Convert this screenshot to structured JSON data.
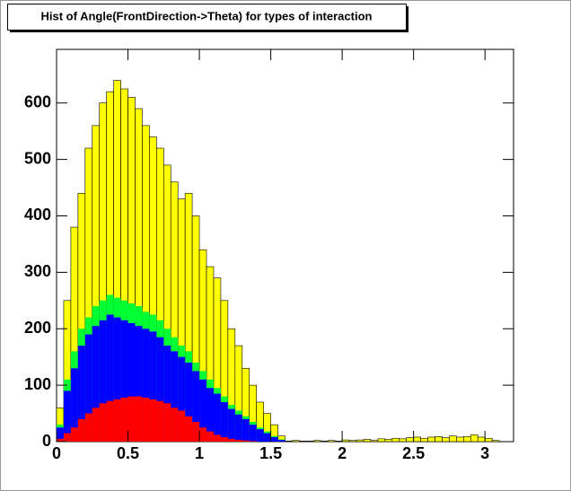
{
  "chart_data": {
    "type": "histogram",
    "title": "Hist of Angle(FrontDirection->Theta) for types of interaction",
    "bins": [
      0,
      0.05,
      0.1,
      0.15,
      0.2,
      0.25,
      0.3,
      0.35,
      0.4,
      0.45,
      0.5,
      0.55,
      0.6,
      0.65,
      0.7,
      0.75,
      0.8,
      0.85,
      0.9,
      0.95,
      1,
      1.05,
      1.1,
      1.15,
      1.2,
      1.25,
      1.3,
      1.35,
      1.4,
      1.45,
      1.5,
      1.55,
      1.6,
      1.65,
      1.7,
      1.75,
      1.8,
      1.85,
      1.9,
      1.95,
      2,
      2.05,
      2.1,
      2.15,
      2.2,
      2.25,
      2.3,
      2.35,
      2.4,
      2.45,
      2.5,
      2.55,
      2.6,
      2.65,
      2.7,
      2.75,
      2.8,
      2.85,
      2.9,
      2.95,
      3,
      3.05,
      3.1,
      3.15,
      3.2
    ],
    "series": [
      {
        "color": "#ffff00",
        "values": [
          60,
          250,
          380,
          440,
          520,
          560,
          600,
          620,
          640,
          625,
          610,
          590,
          560,
          540,
          520,
          490,
          460,
          430,
          440,
          400,
          340,
          310,
          290,
          250,
          200,
          170,
          130,
          100,
          70,
          50,
          30,
          10,
          1,
          2,
          1,
          1,
          2,
          1,
          2,
          1,
          3,
          2,
          3,
          4,
          2,
          5,
          4,
          6,
          5,
          7,
          8,
          6,
          8,
          9,
          7,
          10,
          8,
          9,
          12,
          8,
          6,
          2,
          0,
          0
        ]
      },
      {
        "color": "#00ff33",
        "values": [
          30,
          110,
          160,
          200,
          220,
          240,
          250,
          260,
          255,
          250,
          245,
          240,
          230,
          225,
          215,
          200,
          185,
          170,
          160,
          140,
          125,
          110,
          95,
          80,
          65,
          55,
          45,
          35,
          25,
          18,
          10,
          4,
          0,
          0,
          0,
          0,
          0,
          0,
          0,
          0,
          0,
          0,
          0,
          0,
          0,
          0,
          0,
          0,
          0,
          0,
          0,
          0,
          0,
          0,
          0,
          0,
          0,
          0,
          0,
          0,
          0,
          0,
          0,
          0
        ]
      },
      {
        "color": "#0000ff",
        "values": [
          25,
          90,
          130,
          170,
          190,
          205,
          215,
          225,
          220,
          215,
          210,
          205,
          200,
          195,
          185,
          170,
          160,
          150,
          140,
          125,
          110,
          95,
          85,
          70,
          58,
          48,
          40,
          30,
          22,
          15,
          8,
          3,
          0,
          0,
          0,
          0,
          0,
          0,
          0,
          0,
          0,
          0,
          0,
          0,
          0,
          0,
          0,
          0,
          0,
          0,
          0,
          0,
          0,
          0,
          0,
          0,
          0,
          0,
          0,
          0,
          0,
          0,
          0,
          0
        ]
      },
      {
        "color": "#ff0000",
        "values": [
          5,
          15,
          25,
          40,
          50,
          60,
          68,
          72,
          75,
          78,
          80,
          80,
          78,
          75,
          72,
          68,
          60,
          55,
          45,
          35,
          25,
          18,
          12,
          8,
          5,
          3,
          2,
          1,
          0,
          0,
          0,
          0,
          0,
          0,
          0,
          0,
          0,
          0,
          0,
          0,
          0,
          0,
          0,
          0,
          0,
          0,
          0,
          0,
          0,
          0,
          0,
          0,
          0,
          0,
          0,
          0,
          0,
          0,
          0,
          0,
          0,
          0,
          0,
          0
        ]
      }
    ],
    "xlim": [
      0,
      3.2
    ],
    "ylim": [
      0,
      695
    ],
    "xticks": [
      0,
      0.5,
      1,
      1.5,
      2,
      2.5,
      3
    ],
    "yticks": [
      0,
      100,
      200,
      300,
      400,
      500,
      600
    ]
  }
}
